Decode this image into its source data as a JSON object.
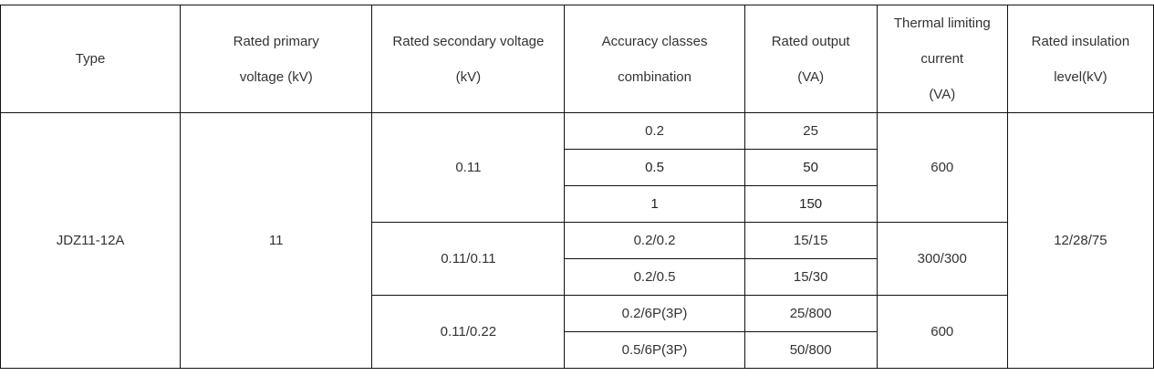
{
  "table": {
    "headers": {
      "type": "Type",
      "primary_voltage": [
        "Rated primary",
        "voltage (kV)"
      ],
      "secondary_voltage": [
        "Rated secondary voltage",
        "(kV)"
      ],
      "accuracy": [
        "Accuracy classes",
        "combination"
      ],
      "output": [
        "Rated output",
        "(VA)"
      ],
      "thermal": [
        "Thermal limiting",
        "current",
        "(VA)"
      ],
      "insulation": [
        "Rated insulation",
        "level(kV)"
      ]
    },
    "type_value": "JDZ11-12A",
    "primary_value": "11",
    "insulation_value": "12/28/75",
    "groups": [
      {
        "secondary": "0.11",
        "thermal": "600",
        "rows": [
          {
            "accuracy": "0.2",
            "output": "25"
          },
          {
            "accuracy": "0.5",
            "output": "50"
          },
          {
            "accuracy": "1",
            "output": "150"
          }
        ]
      },
      {
        "secondary": "0.11/0.11",
        "thermal": "300/300",
        "rows": [
          {
            "accuracy": "0.2/0.2",
            "output": "15/15"
          },
          {
            "accuracy": "0.2/0.5",
            "output": "15/30"
          }
        ]
      },
      {
        "secondary": "0.11/0.22",
        "thermal": "600",
        "rows": [
          {
            "accuracy": "0.2/6P(3P)",
            "output": "25/800"
          },
          {
            "accuracy": "0.5/6P(3P)",
            "output": "50/800"
          }
        ]
      }
    ]
  }
}
